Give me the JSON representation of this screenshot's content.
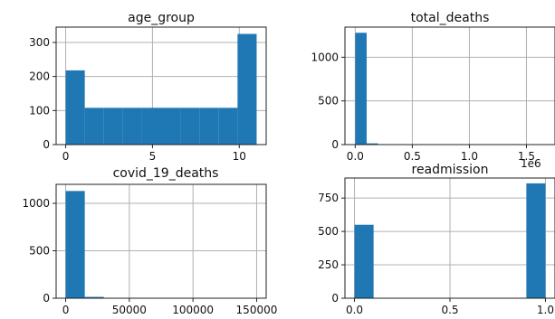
{
  "chart_data": [
    {
      "type": "bar",
      "title": "age_group",
      "xlim": [
        -0.55,
        11.55
      ],
      "ylim": [
        0,
        345
      ],
      "xticks": [
        0,
        5,
        10
      ],
      "xtick_labels": [
        "0",
        "5",
        "10"
      ],
      "yticks": [
        0,
        100,
        200,
        300
      ],
      "ytick_labels": [
        "0",
        "100",
        "200",
        "300"
      ],
      "grid": true,
      "bins": [
        {
          "x0": 0,
          "x1": 1.1,
          "value": 218
        },
        {
          "x0": 1.1,
          "x1": 2.2,
          "value": 108
        },
        {
          "x0": 2.2,
          "x1": 3.3,
          "value": 108
        },
        {
          "x0": 3.3,
          "x1": 4.4,
          "value": 108
        },
        {
          "x0": 4.4,
          "x1": 5.5,
          "value": 108
        },
        {
          "x0": 5.5,
          "x1": 6.6,
          "value": 108
        },
        {
          "x0": 6.6,
          "x1": 7.7,
          "value": 108
        },
        {
          "x0": 7.7,
          "x1": 8.8,
          "value": 108
        },
        {
          "x0": 8.8,
          "x1": 9.9,
          "value": 108
        },
        {
          "x0": 9.9,
          "x1": 11.0,
          "value": 325
        }
      ]
    },
    {
      "type": "bar",
      "title": "total_deaths",
      "xlim": [
        -0.09,
        1.75
      ],
      "ylim": [
        0,
        1345
      ],
      "xticks": [
        0,
        0.5,
        1.0,
        1.5
      ],
      "xtick_labels": [
        "0.0",
        "0.5",
        "1.0",
        "1.5"
      ],
      "yticks": [
        0,
        500,
        1000
      ],
      "ytick_labels": [
        "0",
        "500",
        "1000"
      ],
      "offset_text": "1e6",
      "grid": true,
      "bins": [
        {
          "x0": 0,
          "x1": 0.1,
          "value": 1280
        },
        {
          "x0": 0.1,
          "x1": 0.2,
          "value": 14
        },
        {
          "x0": 0.2,
          "x1": 0.3,
          "value": 2
        }
      ]
    },
    {
      "type": "bar",
      "title": "covid_19_deaths",
      "xlim": [
        -7500,
        157500
      ],
      "ylim": [
        0,
        1200
      ],
      "xticks": [
        0,
        50000,
        100000,
        150000
      ],
      "xtick_labels": [
        "0",
        "50000",
        "100000",
        "150000"
      ],
      "yticks": [
        0,
        500,
        1000
      ],
      "ytick_labels": [
        "0",
        "500",
        "1000"
      ],
      "grid": true,
      "bins": [
        {
          "x0": 0,
          "x1": 15000,
          "value": 1130
        },
        {
          "x0": 15000,
          "x1": 30000,
          "value": 14
        },
        {
          "x0": 30000,
          "x1": 45000,
          "value": 2
        }
      ]
    },
    {
      "type": "bar",
      "title": "readmission",
      "xlim": [
        -0.05,
        1.05
      ],
      "ylim": [
        0,
        900
      ],
      "xticks": [
        0,
        0.5,
        1.0
      ],
      "xtick_labels": [
        "0.0",
        "0.5",
        "1.0"
      ],
      "yticks": [
        0,
        250,
        500,
        750
      ],
      "ytick_labels": [
        "0",
        "250",
        "500",
        "750"
      ],
      "grid": true,
      "bins": [
        {
          "x0": 0,
          "x1": 0.1,
          "value": 550
        },
        {
          "x0": 0.9,
          "x1": 1.0,
          "value": 860
        }
      ]
    }
  ]
}
